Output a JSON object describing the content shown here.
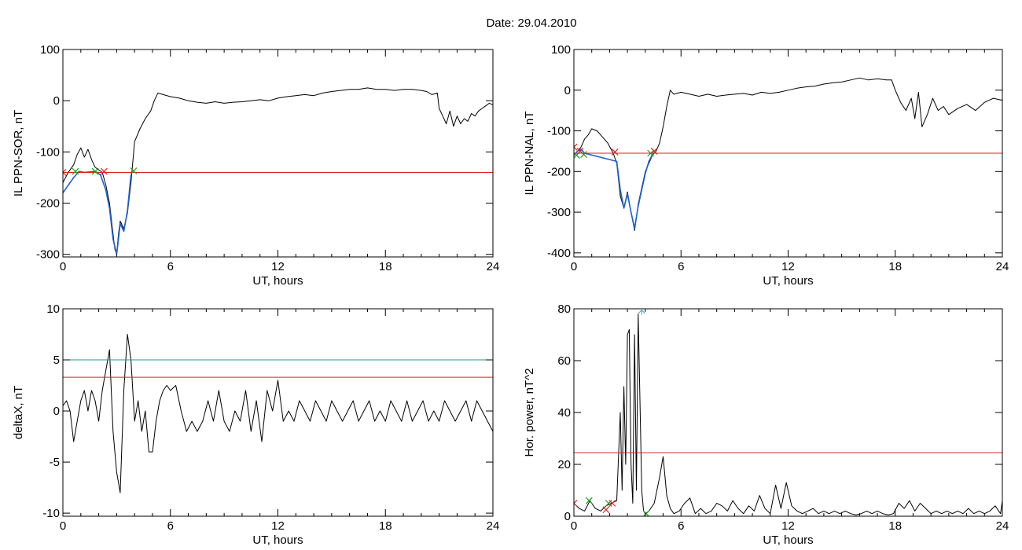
{
  "figure_title": "Date:  29.04.2010",
  "colors": {
    "trace": "#000000",
    "highlight": "#1f5fd0",
    "threshold": "#e02020",
    "threshold2": "#1a9a9a",
    "marker_start": "#1aa01a",
    "marker_end": "#e02020",
    "marker_peak": "#3aa0d0"
  },
  "chart_data": [
    {
      "type": "line",
      "panel": "top-left",
      "title": "",
      "xlabel": "UT, hours",
      "ylabel": "IL PPN-SOR, nT",
      "xlim": [
        0,
        24
      ],
      "ylim": [
        -305,
        100
      ],
      "xticks": [
        0,
        6,
        12,
        18,
        24
      ],
      "yticks": [
        100,
        0,
        -100,
        -200,
        -300
      ],
      "series": [
        {
          "style": "black",
          "x": [
            0.0,
            0.3,
            0.6,
            0.8,
            1.0,
            1.2,
            1.4,
            1.6,
            1.8,
            2.0,
            2.2,
            2.4,
            2.6,
            2.8,
            2.9,
            3.0,
            3.1,
            3.2,
            3.4,
            3.6,
            3.8,
            4.0,
            4.3,
            4.6,
            4.9,
            5.1,
            5.3,
            5.6,
            6.0,
            6.5,
            7.0,
            7.5,
            8.0,
            8.5,
            9.0,
            9.5,
            10.0,
            10.5,
            11.0,
            11.5,
            12.0,
            12.5,
            13.0,
            13.5,
            14.0,
            14.5,
            15.0,
            15.5,
            16.0,
            16.5,
            17.0,
            17.5,
            18.0,
            18.5,
            19.0,
            19.5,
            20.0,
            20.3,
            20.6,
            20.9,
            21.0,
            21.2,
            21.4,
            21.6,
            21.8,
            22.0,
            22.2,
            22.4,
            22.6,
            22.8,
            23.0,
            23.2,
            23.4,
            23.6,
            23.8,
            24.0
          ],
          "y": [
            -160,
            -140,
            -125,
            -105,
            -92,
            -110,
            -95,
            -115,
            -130,
            -135,
            -140,
            -165,
            -200,
            -260,
            -290,
            -300,
            -260,
            -235,
            -250,
            -220,
            -160,
            -80,
            -55,
            -35,
            -20,
            0,
            15,
            12,
            8,
            5,
            0,
            -3,
            -5,
            -2,
            -5,
            -3,
            -2,
            0,
            2,
            0,
            5,
            8,
            10,
            12,
            10,
            15,
            18,
            20,
            22,
            22,
            25,
            22,
            22,
            20,
            22,
            22,
            20,
            18,
            12,
            15,
            -15,
            -30,
            -45,
            -20,
            -50,
            -30,
            -45,
            -35,
            -40,
            -25,
            -30,
            -20,
            -15,
            -10,
            -5,
            -8
          ]
        },
        {
          "style": "highlight",
          "x": [
            0.0,
            0.3,
            0.6,
            0.9,
            1.2,
            1.5,
            1.8,
            2.1,
            2.4,
            2.6,
            2.8,
            3.0,
            3.2,
            3.4,
            3.6,
            3.8
          ],
          "y": [
            -180,
            -165,
            -150,
            -138,
            -140,
            -139,
            -138,
            -145,
            -175,
            -210,
            -270,
            -300,
            -240,
            -255,
            -215,
            -145
          ]
        },
        {
          "style": "threshold",
          "y": -140
        }
      ],
      "markers": [
        {
          "x": 0.0,
          "y": -140,
          "kind": "end"
        },
        {
          "x": 0.7,
          "y": -138,
          "kind": "start"
        },
        {
          "x": 1.8,
          "y": -138,
          "kind": "start"
        },
        {
          "x": 2.3,
          "y": -138,
          "kind": "end"
        },
        {
          "x": 3.95,
          "y": -137,
          "kind": "start"
        }
      ]
    },
    {
      "type": "line",
      "panel": "top-right",
      "title": "",
      "xlabel": "UT, hours",
      "ylabel": "IL PPN-NAL, nT",
      "xlim": [
        0,
        24
      ],
      "ylim": [
        -410,
        100
      ],
      "xticks": [
        0,
        6,
        12,
        18,
        24
      ],
      "yticks": [
        100,
        0,
        -100,
        -200,
        -300,
        -400
      ],
      "series": [
        {
          "style": "black",
          "x": [
            0.0,
            0.2,
            0.4,
            0.6,
            0.8,
            1.0,
            1.3,
            1.6,
            1.9,
            2.2,
            2.4,
            2.6,
            2.8,
            3.0,
            3.2,
            3.4,
            3.6,
            3.8,
            4.0,
            4.2,
            4.4,
            4.6,
            4.8,
            5.0,
            5.2,
            5.4,
            5.6,
            6.0,
            6.5,
            7.0,
            7.5,
            8.0,
            8.5,
            9.0,
            9.5,
            10.0,
            10.5,
            11.0,
            11.5,
            12.0,
            12.5,
            13.0,
            13.5,
            14.0,
            14.5,
            15.0,
            15.5,
            16.0,
            16.5,
            17.0,
            17.5,
            17.8,
            18.0,
            18.3,
            18.6,
            18.9,
            19.1,
            19.3,
            19.5,
            19.8,
            20.1,
            20.4,
            20.7,
            21.0,
            21.5,
            22.0,
            22.5,
            23.0,
            23.5,
            24.0
          ],
          "y": [
            -160,
            -150,
            -140,
            -120,
            -110,
            -95,
            -100,
            -115,
            -130,
            -155,
            -180,
            -260,
            -290,
            -250,
            -300,
            -345,
            -280,
            -240,
            -200,
            -180,
            -160,
            -150,
            -130,
            -90,
            -40,
            0,
            -10,
            -5,
            -10,
            -15,
            -10,
            -15,
            -12,
            -10,
            -8,
            -12,
            -5,
            -8,
            -5,
            0,
            5,
            8,
            10,
            15,
            18,
            20,
            25,
            30,
            25,
            28,
            25,
            25,
            0,
            -30,
            -50,
            -20,
            -70,
            -5,
            -90,
            -60,
            -20,
            -50,
            -40,
            -60,
            -45,
            -35,
            -50,
            -30,
            -20,
            -25
          ]
        },
        {
          "style": "highlight",
          "x": [
            0.0,
            0.2,
            0.4,
            0.6,
            2.4,
            2.6,
            2.8,
            3.0,
            3.2,
            3.4,
            3.6,
            3.8,
            4.0,
            4.2,
            4.4
          ],
          "y": [
            -160,
            -150,
            -145,
            -155,
            -175,
            -245,
            -290,
            -255,
            -300,
            -340,
            -285,
            -245,
            -205,
            -175,
            -158
          ]
        },
        {
          "style": "threshold",
          "y": -155
        }
      ],
      "markers": [
        {
          "x": 0.0,
          "y": -140,
          "kind": "end"
        },
        {
          "x": 0.15,
          "y": -160,
          "kind": "start"
        },
        {
          "x": 0.35,
          "y": -150,
          "kind": "end"
        },
        {
          "x": 0.55,
          "y": -158,
          "kind": "start"
        },
        {
          "x": 2.3,
          "y": -152,
          "kind": "end"
        },
        {
          "x": 4.3,
          "y": -155,
          "kind": "start"
        },
        {
          "x": 4.5,
          "y": -150,
          "kind": "end"
        }
      ]
    },
    {
      "type": "line",
      "panel": "bottom-left",
      "title": "",
      "xlabel": "UT, hours",
      "ylabel": "deltaX, nT",
      "xlim": [
        0,
        24
      ],
      "ylim": [
        -10.3,
        10
      ],
      "xticks": [
        0,
        6,
        12,
        18,
        24
      ],
      "yticks": [
        10,
        5,
        0,
        -5,
        -10
      ],
      "series": [
        {
          "style": "black",
          "x": [
            0.0,
            0.2,
            0.4,
            0.6,
            0.8,
            1.0,
            1.2,
            1.4,
            1.6,
            1.8,
            2.0,
            2.2,
            2.4,
            2.6,
            2.8,
            3.0,
            3.2,
            3.4,
            3.6,
            3.8,
            4.0,
            4.2,
            4.4,
            4.6,
            4.8,
            5.0,
            5.2,
            5.4,
            5.6,
            5.8,
            6.0,
            6.3,
            6.6,
            6.9,
            7.2,
            7.5,
            7.8,
            8.1,
            8.4,
            8.7,
            9.0,
            9.3,
            9.6,
            9.9,
            10.2,
            10.5,
            10.8,
            11.1,
            11.4,
            11.7,
            12.0,
            12.3,
            12.6,
            12.9,
            13.2,
            13.5,
            13.8,
            14.1,
            14.4,
            14.7,
            15.0,
            15.3,
            15.6,
            15.9,
            16.2,
            16.5,
            16.8,
            17.1,
            17.4,
            17.7,
            18.0,
            18.3,
            18.6,
            18.9,
            19.2,
            19.5,
            19.8,
            20.1,
            20.4,
            20.7,
            21.0,
            21.3,
            21.6,
            21.9,
            22.2,
            22.5,
            22.8,
            23.1,
            23.4,
            23.7,
            24.0
          ],
          "y": [
            0.5,
            1,
            0,
            -3,
            -1,
            1,
            2,
            0,
            2,
            1,
            -1,
            2,
            4,
            6,
            -2,
            -6,
            -8,
            2,
            7.5,
            5,
            -1,
            1,
            -2,
            0,
            -4,
            -4,
            -1,
            1,
            2,
            2.5,
            2,
            2.5,
            0,
            -2,
            -1,
            -2,
            -1,
            1,
            -1,
            2,
            -1,
            -2,
            0,
            -1,
            2,
            -2,
            1,
            -3,
            2,
            0,
            3,
            -1,
            0,
            -1,
            1,
            0,
            -1,
            1,
            0,
            -1,
            1,
            0,
            -1,
            0,
            1,
            -1,
            0,
            1,
            -1,
            0,
            -1,
            1,
            0,
            -1,
            1,
            -1,
            0,
            1,
            -1,
            0,
            -1,
            1,
            0,
            -1,
            0,
            1,
            -1,
            1,
            0,
            -1,
            -2
          ]
        },
        {
          "style": "threshold",
          "y": 3.3
        },
        {
          "style": "threshold2",
          "y": 5
        }
      ],
      "markers": []
    },
    {
      "type": "line",
      "panel": "bottom-right",
      "title": "",
      "xlabel": "UT, hours",
      "ylabel": "Hor. power, nT^2",
      "xlim": [
        0,
        24
      ],
      "ylim": [
        0,
        80
      ],
      "xticks": [
        0,
        6,
        12,
        18,
        24
      ],
      "yticks": [
        80,
        60,
        40,
        20,
        0
      ],
      "series": [
        {
          "style": "black",
          "x": [
            0.0,
            0.3,
            0.6,
            0.9,
            1.2,
            1.5,
            1.8,
            2.1,
            2.4,
            2.6,
            2.7,
            2.8,
            2.9,
            3.0,
            3.1,
            3.2,
            3.3,
            3.4,
            3.5,
            3.6,
            3.7,
            3.8,
            3.9,
            4.0,
            4.2,
            4.5,
            4.8,
            5.0,
            5.2,
            5.4,
            5.6,
            5.9,
            6.2,
            6.5,
            6.8,
            7.1,
            7.4,
            7.7,
            8.0,
            8.3,
            8.6,
            8.9,
            9.2,
            9.5,
            9.8,
            10.1,
            10.4,
            10.7,
            11.0,
            11.3,
            11.6,
            11.9,
            12.2,
            12.5,
            12.8,
            13.1,
            13.4,
            13.7,
            14.0,
            14.3,
            14.6,
            14.9,
            15.2,
            15.5,
            15.8,
            16.1,
            16.4,
            16.7,
            17.0,
            17.3,
            17.6,
            17.9,
            18.2,
            18.5,
            18.8,
            19.1,
            19.4,
            19.7,
            20.0,
            20.3,
            20.6,
            20.9,
            21.2,
            21.5,
            21.8,
            22.1,
            22.4,
            22.7,
            23.0,
            23.3,
            23.6,
            23.9,
            24.0
          ],
          "y": [
            5,
            3,
            2,
            6,
            3,
            2,
            4,
            5,
            6,
            40,
            10,
            50,
            20,
            70,
            72,
            20,
            5,
            70,
            10,
            78,
            45,
            10,
            2,
            1,
            2,
            5,
            15,
            23,
            8,
            3,
            1,
            2,
            5,
            7,
            1,
            3,
            1,
            2,
            5,
            4,
            2,
            6,
            3,
            1,
            4,
            2,
            8,
            3,
            1,
            12,
            3,
            13,
            4,
            2,
            1,
            2,
            3,
            1,
            2,
            1,
            2,
            1,
            2,
            1,
            0.5,
            1,
            2,
            1,
            2,
            1,
            0.5,
            1,
            5,
            3,
            6,
            2,
            5,
            3,
            1,
            2,
            1,
            2,
            1,
            2,
            1,
            3,
            1,
            2,
            1,
            2,
            4,
            1,
            6
          ]
        },
        {
          "style": "threshold",
          "y": 24.5
        }
      ],
      "markers": [
        {
          "x": 0.0,
          "y": 5,
          "kind": "end"
        },
        {
          "x": 0.85,
          "y": 6,
          "kind": "start"
        },
        {
          "x": 1.8,
          "y": 2.5,
          "kind": "end"
        },
        {
          "x": 1.95,
          "y": 5,
          "kind": "start"
        },
        {
          "x": 2.15,
          "y": 5,
          "kind": "end"
        },
        {
          "x": 3.8,
          "y": 79.5,
          "kind": "peak"
        },
        {
          "x": 4.05,
          "y": 1,
          "kind": "start"
        }
      ]
    }
  ]
}
